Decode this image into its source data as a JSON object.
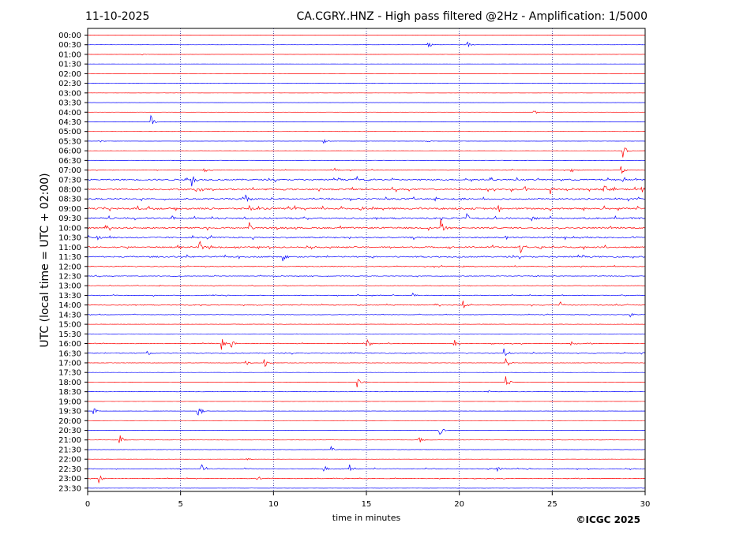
{
  "header": {
    "date": "11-10-2025",
    "title": "CA.CGRY..HNZ - High pass filtered @2Hz - Amplification: 1/5000"
  },
  "copyright": "©ICGC 2025",
  "colors": {
    "trace_a": "#ff0000",
    "trace_b": "#0000ff",
    "grid": "#000080",
    "axis": "#000000"
  },
  "chart_data": {
    "type": "line",
    "subtype": "helicorder",
    "xlabel": "time in minutes",
    "ylabel": "UTC (local time = UTC + 02:00)",
    "xlim": [
      0,
      30
    ],
    "x_ticks": [
      0,
      5,
      10,
      15,
      20,
      25,
      30
    ],
    "vertical_gridlines": [
      5,
      10,
      15,
      20,
      25
    ],
    "row_labels": [
      "00:00",
      "00:30",
      "01:00",
      "01:30",
      "02:00",
      "02:30",
      "03:00",
      "03:30",
      "04:00",
      "04:30",
      "05:00",
      "05:30",
      "06:00",
      "06:30",
      "07:00",
      "07:30",
      "08:00",
      "08:30",
      "09:00",
      "09:30",
      "10:00",
      "10:30",
      "11:00",
      "11:30",
      "12:00",
      "12:30",
      "13:00",
      "13:30",
      "14:00",
      "14:30",
      "15:00",
      "15:30",
      "16:00",
      "16:30",
      "17:00",
      "17:30",
      "18:00",
      "18:30",
      "19:00",
      "19:30",
      "20:00",
      "20:30",
      "21:00",
      "21:30",
      "22:00",
      "22:30",
      "23:00",
      "23:30"
    ],
    "trace_color_cycle": [
      "red",
      "blue"
    ],
    "noise_level": [
      0.05,
      0.05,
      0.05,
      0.04,
      0.04,
      0.04,
      0.04,
      0.04,
      0.04,
      0.04,
      0.04,
      0.05,
      0.05,
      0.08,
      0.15,
      0.35,
      0.4,
      0.35,
      0.45,
      0.4,
      0.4,
      0.35,
      0.35,
      0.35,
      0.2,
      0.15,
      0.12,
      0.18,
      0.2,
      0.12,
      0.08,
      0.08,
      0.15,
      0.18,
      0.1,
      0.06,
      0.06,
      0.08,
      0.05,
      0.05,
      0.05,
      0.06,
      0.06,
      0.08,
      0.06,
      0.18,
      0.12,
      0.06
    ],
    "events": [
      {
        "row": "00:30",
        "t": 18.3,
        "amp": 1.0
      },
      {
        "row": "00:30",
        "t": 20.4,
        "amp": 1.0
      },
      {
        "row": "01:00",
        "t": 2.9,
        "amp": 0.3
      },
      {
        "row": "04:00",
        "t": 24.0,
        "amp": 0.7
      },
      {
        "row": "04:30",
        "t": 3.4,
        "amp": 1.5
      },
      {
        "row": "05:30",
        "t": 0.6,
        "amp": 0.4
      },
      {
        "row": "05:30",
        "t": 12.7,
        "amp": 0.7
      },
      {
        "row": "05:30",
        "t": 18.2,
        "amp": 0.5
      },
      {
        "row": "06:00",
        "t": 28.8,
        "amp": 1.6
      },
      {
        "row": "07:00",
        "t": 6.2,
        "amp": 1.0
      },
      {
        "row": "07:00",
        "t": 13.2,
        "amp": 0.8
      },
      {
        "row": "07:00",
        "t": 26.0,
        "amp": 0.8
      },
      {
        "row": "07:00",
        "t": 28.7,
        "amp": 1.3
      },
      {
        "row": "07:30",
        "t": 5.6,
        "amp": 2.0
      },
      {
        "row": "07:30",
        "t": 14.4,
        "amp": 1.2
      },
      {
        "row": "07:30",
        "t": 28.7,
        "amp": 1.0
      },
      {
        "row": "08:00",
        "t": 5.8,
        "amp": 1.0
      },
      {
        "row": "08:00",
        "t": 23.5,
        "amp": 1.0
      },
      {
        "row": "08:00",
        "t": 24.9,
        "amp": 1.2
      },
      {
        "row": "08:00",
        "t": 27.8,
        "amp": 1.1
      },
      {
        "row": "08:00",
        "t": 29.8,
        "amp": 1.1
      },
      {
        "row": "08:30",
        "t": 8.5,
        "amp": 1.0
      },
      {
        "row": "08:30",
        "t": 20.1,
        "amp": 0.8
      },
      {
        "row": "09:00",
        "t": 2.7,
        "amp": 1.0
      },
      {
        "row": "09:00",
        "t": 8.7,
        "amp": 1.0
      },
      {
        "row": "09:00",
        "t": 22.1,
        "amp": 1.0
      },
      {
        "row": "09:00",
        "t": 24.9,
        "amp": 1.1
      },
      {
        "row": "09:00",
        "t": 29.5,
        "amp": 1.2
      },
      {
        "row": "09:30",
        "t": 4.5,
        "amp": 1.2
      },
      {
        "row": "09:30",
        "t": 20.4,
        "amp": 1.1
      },
      {
        "row": "09:30",
        "t": 23.9,
        "amp": 1.0
      },
      {
        "row": "10:00",
        "t": 8.7,
        "amp": 2.2
      },
      {
        "row": "10:00",
        "t": 19.0,
        "amp": 2.6
      },
      {
        "row": "10:30",
        "t": 0.5,
        "amp": 1.0
      },
      {
        "row": "10:30",
        "t": 22.5,
        "amp": 1.0
      },
      {
        "row": "10:30",
        "t": 29.3,
        "amp": 0.7
      },
      {
        "row": "11:00",
        "t": 6.0,
        "amp": 1.7
      },
      {
        "row": "11:00",
        "t": 23.3,
        "amp": 1.5
      },
      {
        "row": "11:00",
        "t": 24.3,
        "amp": 1.0
      },
      {
        "row": "11:30",
        "t": 10.5,
        "amp": 1.6
      },
      {
        "row": "12:30",
        "t": 4.6,
        "amp": 0.7
      },
      {
        "row": "13:30",
        "t": 17.5,
        "amp": 0.6
      },
      {
        "row": "14:00",
        "t": 20.2,
        "amp": 1.2
      },
      {
        "row": "14:00",
        "t": 25.4,
        "amp": 1.2
      },
      {
        "row": "14:30",
        "t": 29.2,
        "amp": 0.8
      },
      {
        "row": "16:00",
        "t": 7.2,
        "amp": 1.5
      },
      {
        "row": "16:00",
        "t": 7.7,
        "amp": 1.5
      },
      {
        "row": "16:00",
        "t": 15.0,
        "amp": 1.8
      },
      {
        "row": "16:00",
        "t": 19.7,
        "amp": 1.4
      },
      {
        "row": "16:00",
        "t": 26.0,
        "amp": 0.7
      },
      {
        "row": "16:30",
        "t": 3.2,
        "amp": 0.8
      },
      {
        "row": "16:30",
        "t": 22.4,
        "amp": 1.2
      },
      {
        "row": "17:00",
        "t": 8.5,
        "amp": 1.4
      },
      {
        "row": "17:00",
        "t": 9.5,
        "amp": 2.0
      },
      {
        "row": "17:00",
        "t": 22.5,
        "amp": 1.5
      },
      {
        "row": "18:00",
        "t": 14.5,
        "amp": 1.4
      },
      {
        "row": "18:00",
        "t": 22.5,
        "amp": 1.8
      },
      {
        "row": "18:30",
        "t": 21.5,
        "amp": 0.6
      },
      {
        "row": "19:30",
        "t": 0.3,
        "amp": 1.0
      },
      {
        "row": "19:30",
        "t": 5.9,
        "amp": 3.4
      },
      {
        "row": "20:30",
        "t": 18.9,
        "amp": 1.7
      },
      {
        "row": "21:00",
        "t": 1.7,
        "amp": 2.2
      },
      {
        "row": "21:00",
        "t": 17.8,
        "amp": 1.1
      },
      {
        "row": "21:30",
        "t": 13.1,
        "amp": 0.9
      },
      {
        "row": "22:00",
        "t": 8.5,
        "amp": 0.6
      },
      {
        "row": "22:30",
        "t": 6.1,
        "amp": 1.6
      },
      {
        "row": "22:30",
        "t": 12.7,
        "amp": 1.2
      },
      {
        "row": "22:30",
        "t": 14.1,
        "amp": 1.2
      },
      {
        "row": "22:30",
        "t": 22.0,
        "amp": 1.0
      },
      {
        "row": "23:00",
        "t": 0.6,
        "amp": 1.2
      },
      {
        "row": "23:00",
        "t": 9.1,
        "amp": 1.0
      }
    ]
  }
}
